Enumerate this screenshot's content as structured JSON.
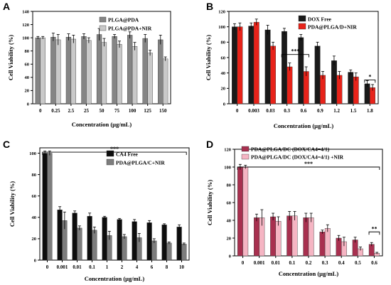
{
  "chart_data": [
    {
      "panel": "A",
      "type": "bar",
      "categories": [
        "0",
        "0.25",
        "2.5",
        "25",
        "50",
        "75",
        "100",
        "125",
        "150"
      ],
      "series": [
        {
          "name": "PLGA@PDA",
          "color": "#858585",
          "values": [
            100,
            101,
            101,
            102,
            105,
            102,
            104,
            99,
            97
          ],
          "errors": [
            2,
            6,
            5,
            4,
            9,
            3,
            5,
            6,
            7
          ]
        },
        {
          "name": "PLGA@PDA+NIR",
          "color": "#c9c9c9",
          "values": [
            100,
            97,
            98,
            96,
            93,
            90,
            87,
            77,
            68
          ],
          "errors": [
            2,
            8,
            6,
            4,
            6,
            5,
            6,
            4,
            3
          ]
        }
      ],
      "xlabel": "Concentration (μg/mL)",
      "ylabel": "Cell Viability (%)",
      "ylim": [
        0,
        140
      ],
      "yticks": [
        0,
        20,
        40,
        60,
        80,
        100,
        120,
        140
      ],
      "legend": "top",
      "annotations": []
    },
    {
      "panel": "B",
      "type": "bar",
      "categories": [
        "0",
        "0.003",
        "0.03",
        "0.3",
        "0.6",
        "0.9",
        "1.2",
        "1.5",
        "1.8"
      ],
      "series": [
        {
          "name": "DOX Free",
          "color": "#1a1a1a",
          "values": [
            100,
            101,
            96,
            94,
            86,
            75,
            56,
            41,
            26
          ],
          "errors": [
            4,
            4,
            6,
            4,
            4,
            5,
            6,
            3,
            4
          ]
        },
        {
          "name": "PDA@PLGA/D+NIR",
          "color": "#e8231a",
          "values": [
            100,
            106,
            75,
            48,
            42,
            37,
            37,
            35,
            21
          ],
          "errors": [
            5,
            4,
            5,
            5,
            6,
            5,
            5,
            5,
            4
          ]
        }
      ],
      "xlabel": "Concentration (μg/mL)",
      "ylabel": "Cell Viability (%)",
      "ylim": [
        0,
        120
      ],
      "yticks": [
        0,
        20,
        40,
        60,
        80,
        100,
        120
      ],
      "legend": "top-right",
      "annotations": [
        {
          "text": "***",
          "from": 3,
          "to": 4,
          "y": 64
        },
        {
          "text": "*",
          "from": 8,
          "to": 8,
          "y": 31
        }
      ]
    },
    {
      "panel": "C",
      "type": "bar",
      "categories": [
        "0",
        "0.001",
        "0.01",
        "0.1",
        "1",
        "2",
        "4",
        "6",
        "8",
        "10"
      ],
      "series": [
        {
          "name": "CA4 Free",
          "color": "#0d0d0d",
          "values": [
            100,
            47,
            44,
            41,
            40,
            38,
            36,
            35,
            33,
            31
          ],
          "errors": [
            2,
            3,
            2,
            3,
            1,
            1,
            2,
            2,
            1,
            2
          ]
        },
        {
          "name": "PDA@PLGA/C+NIR",
          "color": "#7d7d7d",
          "values": [
            100,
            37,
            30,
            28,
            23,
            22,
            21,
            18,
            16,
            15
          ],
          "errors": [
            2,
            8,
            2,
            3,
            4,
            2,
            4,
            2,
            1,
            1
          ]
        }
      ],
      "xlabel": "Concentration (μg/mL)",
      "ylabel": "Cell Viability (%)",
      "ylim": [
        0,
        105
      ],
      "yticks": [
        0,
        20,
        40,
        60,
        80,
        100
      ],
      "legend": "top-right",
      "annotations": [
        {
          "text": "***",
          "from": 0,
          "to": 9,
          "y": 101
        }
      ]
    },
    {
      "panel": "D",
      "type": "bar",
      "categories": [
        "0",
        "0.001",
        "0.01",
        "0.1",
        "0.2",
        "0.3",
        "0.4",
        "0.5",
        "0.6"
      ],
      "series": [
        {
          "name": "PDA@PLGA/DC (DOX/CA4=4/1)",
          "color": "#a8304f",
          "values": [
            100,
            43,
            44,
            45,
            43,
            27,
            20,
            18,
            13
          ],
          "errors": [
            3,
            4,
            4,
            5,
            5,
            2,
            3,
            3,
            2
          ]
        },
        {
          "name": "PDA@PLGA/DC (DOX/CA4=4/1) +NIR",
          "color": "#f5b5c3",
          "values": [
            100,
            43,
            39,
            45,
            43,
            31,
            16,
            8,
            3
          ],
          "errors": [
            2,
            9,
            5,
            5,
            5,
            4,
            5,
            2,
            1
          ]
        }
      ],
      "xlabel": "Concentration (μg/mL)",
      "ylabel": "Cell Viability (%)",
      "ylim": [
        0,
        120
      ],
      "yticks": [
        0,
        20,
        40,
        60,
        80,
        100,
        120
      ],
      "legend": "top",
      "annotations": [
        {
          "text": "***",
          "from": 0,
          "to": 8,
          "y": 100
        },
        {
          "text": "**",
          "from": 8,
          "to": 8,
          "y": 27
        }
      ]
    }
  ]
}
